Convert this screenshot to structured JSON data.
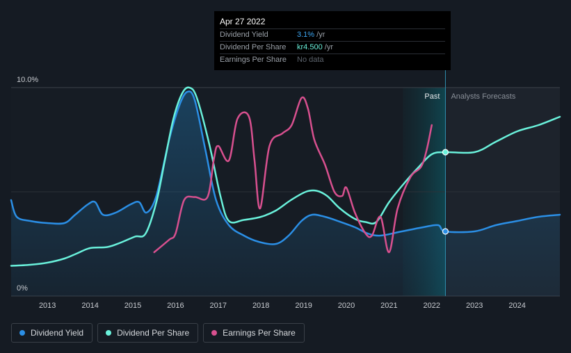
{
  "tooltip": {
    "date": "Apr 27 2022",
    "rows": [
      {
        "label": "Dividend Yield",
        "value": "3.1%",
        "unit": "/yr",
        "color": "#3ea8f4"
      },
      {
        "label": "Dividend Per Share",
        "value": "kr4.500",
        "unit": "/yr",
        "color": "#6af2dc"
      },
      {
        "label": "Earnings Per Share",
        "value": "No data",
        "unit": "",
        "color": "#5d646d"
      }
    ]
  },
  "legend": [
    {
      "label": "Dividend Yield",
      "color": "#2b8fe6"
    },
    {
      "label": "Dividend Per Share",
      "color": "#6af2dc"
    },
    {
      "label": "Earnings Per Share",
      "color": "#d8508f"
    }
  ],
  "chart_data": {
    "type": "line",
    "title": "",
    "xlabel": "",
    "ylabel": "",
    "xlim": [
      2012.15,
      2025.0
    ],
    "ylim": [
      0,
      10
    ],
    "y_tick_labels": [
      {
        "value": 10,
        "label": "10.0%"
      },
      {
        "value": 0,
        "label": "0%"
      }
    ],
    "x_ticks": [
      2013,
      2014,
      2015,
      2016,
      2017,
      2018,
      2019,
      2020,
      2021,
      2022,
      2023,
      2024
    ],
    "past_label": "Past",
    "forecast_label": "Analysts Forecasts",
    "forecast_start": 2022.32,
    "past_band_start": 2021.32,
    "series": [
      {
        "name": "Dividend Yield",
        "color": "#2b8fe6",
        "fill": true,
        "points": [
          [
            2012.15,
            4.6
          ],
          [
            2012.28,
            3.8
          ],
          [
            2012.6,
            3.6
          ],
          [
            2013.0,
            3.5
          ],
          [
            2013.4,
            3.5
          ],
          [
            2013.65,
            3.9
          ],
          [
            2013.95,
            4.4
          ],
          [
            2014.12,
            4.5
          ],
          [
            2014.3,
            3.9
          ],
          [
            2014.6,
            4.0
          ],
          [
            2014.95,
            4.4
          ],
          [
            2015.15,
            4.5
          ],
          [
            2015.32,
            4.0
          ],
          [
            2015.55,
            4.8
          ],
          [
            2015.85,
            7.5
          ],
          [
            2016.1,
            9.2
          ],
          [
            2016.28,
            9.8
          ],
          [
            2016.45,
            9.4
          ],
          [
            2016.7,
            7.0
          ],
          [
            2016.95,
            4.6
          ],
          [
            2017.25,
            3.4
          ],
          [
            2017.6,
            2.9
          ],
          [
            2017.95,
            2.6
          ],
          [
            2018.35,
            2.5
          ],
          [
            2018.65,
            2.9
          ],
          [
            2018.95,
            3.6
          ],
          [
            2019.2,
            3.9
          ],
          [
            2019.5,
            3.8
          ],
          [
            2019.8,
            3.6
          ],
          [
            2020.2,
            3.3
          ],
          [
            2020.5,
            3.0
          ],
          [
            2020.8,
            2.9
          ],
          [
            2021.3,
            3.1
          ],
          [
            2021.8,
            3.3
          ],
          [
            2022.15,
            3.4
          ],
          [
            2022.32,
            3.1
          ],
          [
            2023.0,
            3.1
          ],
          [
            2023.5,
            3.4
          ],
          [
            2024.0,
            3.6
          ],
          [
            2024.5,
            3.8
          ],
          [
            2025.0,
            3.9
          ]
        ]
      },
      {
        "name": "Dividend Per Share",
        "color": "#6af2dc",
        "fill": false,
        "points": [
          [
            2012.15,
            1.45
          ],
          [
            2012.6,
            1.5
          ],
          [
            2013.0,
            1.6
          ],
          [
            2013.4,
            1.8
          ],
          [
            2013.7,
            2.05
          ],
          [
            2014.0,
            2.3
          ],
          [
            2014.4,
            2.35
          ],
          [
            2014.7,
            2.55
          ],
          [
            2015.05,
            2.85
          ],
          [
            2015.3,
            3.0
          ],
          [
            2015.55,
            4.5
          ],
          [
            2015.75,
            6.5
          ],
          [
            2015.95,
            8.5
          ],
          [
            2016.15,
            9.7
          ],
          [
            2016.32,
            10.0
          ],
          [
            2016.5,
            9.5
          ],
          [
            2016.8,
            7.2
          ],
          [
            2017.05,
            4.8
          ],
          [
            2017.25,
            3.6
          ],
          [
            2017.6,
            3.65
          ],
          [
            2018.0,
            3.8
          ],
          [
            2018.35,
            4.1
          ],
          [
            2018.7,
            4.6
          ],
          [
            2019.05,
            5.0
          ],
          [
            2019.3,
            5.05
          ],
          [
            2019.55,
            4.8
          ],
          [
            2019.85,
            4.2
          ],
          [
            2020.2,
            3.7
          ],
          [
            2020.45,
            3.55
          ],
          [
            2020.7,
            3.55
          ],
          [
            2021.0,
            4.5
          ],
          [
            2021.35,
            5.4
          ],
          [
            2021.7,
            6.2
          ],
          [
            2022.0,
            6.8
          ],
          [
            2022.32,
            6.9
          ],
          [
            2023.0,
            6.9
          ],
          [
            2023.5,
            7.4
          ],
          [
            2024.0,
            7.9
          ],
          [
            2024.5,
            8.2
          ],
          [
            2025.0,
            8.6
          ]
        ]
      },
      {
        "name": "Earnings Per Share",
        "color": "#d8508f",
        "fill": false,
        "points": [
          [
            2015.5,
            2.1
          ],
          [
            2015.85,
            2.7
          ],
          [
            2016.0,
            3.0
          ],
          [
            2016.2,
            4.6
          ],
          [
            2016.45,
            4.75
          ],
          [
            2016.75,
            4.75
          ],
          [
            2016.9,
            6.6
          ],
          [
            2017.0,
            7.2
          ],
          [
            2017.25,
            6.5
          ],
          [
            2017.45,
            8.5
          ],
          [
            2017.72,
            8.6
          ],
          [
            2017.85,
            6.5
          ],
          [
            2017.98,
            4.2
          ],
          [
            2018.2,
            7.2
          ],
          [
            2018.5,
            7.8
          ],
          [
            2018.72,
            8.2
          ],
          [
            2018.95,
            9.5
          ],
          [
            2019.1,
            9.0
          ],
          [
            2019.25,
            7.5
          ],
          [
            2019.5,
            6.3
          ],
          [
            2019.72,
            5.0
          ],
          [
            2019.9,
            4.8
          ],
          [
            2020.0,
            5.2
          ],
          [
            2020.2,
            4.0
          ],
          [
            2020.45,
            3.0
          ],
          [
            2020.6,
            2.9
          ],
          [
            2020.8,
            3.8
          ],
          [
            2021.0,
            2.1
          ],
          [
            2021.2,
            4.2
          ],
          [
            2021.5,
            5.7
          ],
          [
            2021.75,
            6.2
          ],
          [
            2021.88,
            7.0
          ],
          [
            2022.0,
            8.2
          ]
        ]
      }
    ],
    "highlight_points": [
      {
        "series": "Dividend Per Share",
        "x": 2022.32,
        "y": 6.9
      },
      {
        "series": "Dividend Yield",
        "x": 2022.32,
        "y": 3.1
      }
    ]
  }
}
